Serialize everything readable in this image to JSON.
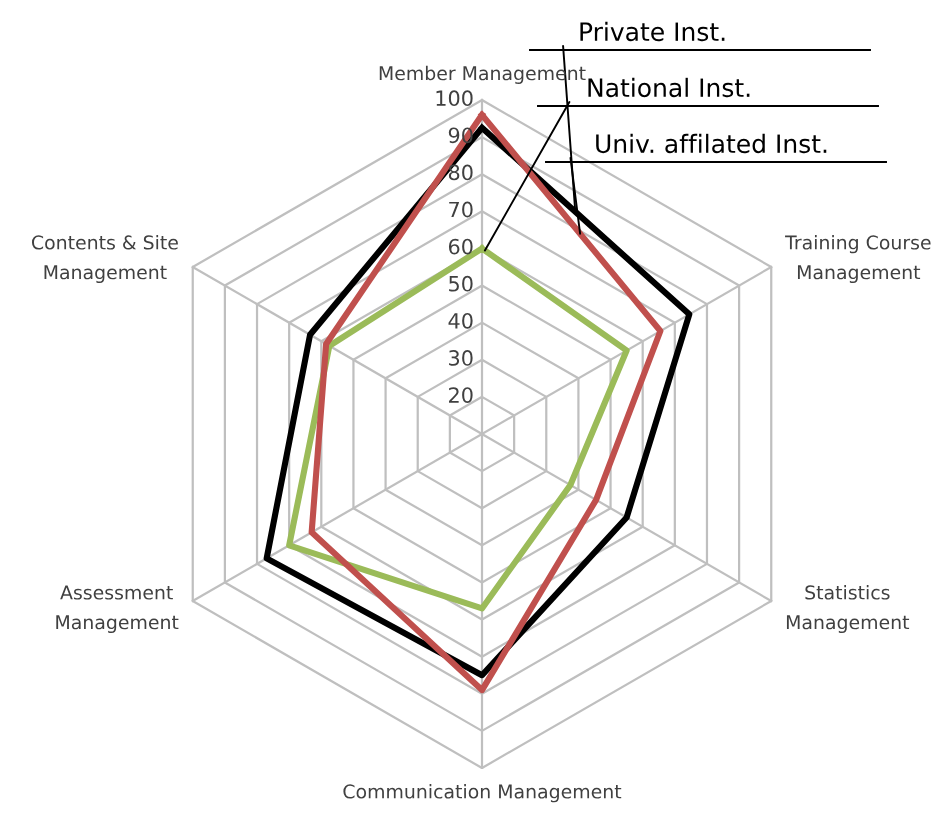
{
  "chart_data": {
    "type": "radar",
    "categories": [
      "Member Management",
      "Training Course\nManagement",
      "Statistics\nManagement",
      "Communication Management",
      "Assessment\nManagement",
      "Contents & Site\nManagement"
    ],
    "series": [
      {
        "name": "Private Inst.",
        "color": "#000000",
        "values": [
          92.5,
          74.5,
          55,
          75,
          77,
          63.5
        ]
      },
      {
        "name": "National Inst.",
        "color": "#9bbb59",
        "values": [
          60,
          55,
          37.5,
          57,
          70,
          57.5
        ]
      },
      {
        "name": "Univ. affilated Inst.",
        "color": "#c0504d",
        "values": [
          96,
          65.5,
          45.5,
          79,
          63,
          58.5
        ]
      }
    ],
    "ylim": [
      10,
      100
    ],
    "yticks": [
      20,
      30,
      40,
      50,
      60,
      70,
      80,
      90,
      100
    ],
    "grid": true,
    "legend": "top right"
  }
}
